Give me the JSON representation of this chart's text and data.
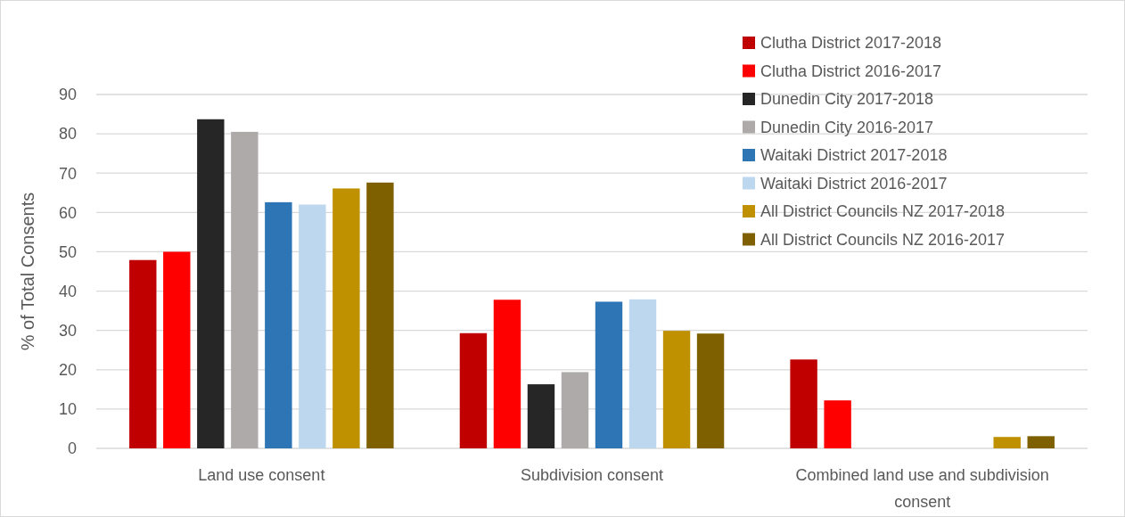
{
  "chart_data": {
    "type": "bar",
    "ylabel": "% of Total Consents",
    "categories": [
      "Land use consent",
      "Subdivision consent",
      "Combined land use and subdivision consent"
    ],
    "series": [
      {
        "name": "Clutha District 2017-2018",
        "color": "#c00000",
        "values": [
          47.9,
          29.3,
          22.6
        ]
      },
      {
        "name": "Clutha District 2016-2017",
        "color": "#ff0000",
        "values": [
          50,
          37.8,
          12.2
        ]
      },
      {
        "name": "Dunedin City 2017-2018",
        "color": "#262626",
        "values": [
          83.7,
          16.3,
          0
        ]
      },
      {
        "name": "Dunedin City 2016-2017",
        "color": "#aeaaaa",
        "values": [
          80.5,
          19.4,
          0
        ]
      },
      {
        "name": "Waitaki District 2017-2018",
        "color": "#2e75b6",
        "values": [
          62.6,
          37.3,
          0
        ]
      },
      {
        "name": "Waitaki District 2016-2017",
        "color": "#bdd7ee",
        "values": [
          62,
          37.9,
          0
        ]
      },
      {
        "name": "All District Councils NZ 2017-2018",
        "color": "#bf9000",
        "values": [
          66.1,
          29.9,
          2.9
        ]
      },
      {
        "name": "All District Councils NZ 2016-2017",
        "color": "#7f6000",
        "values": [
          67.6,
          29.2,
          3.1
        ]
      }
    ],
    "ylim": [
      0,
      90
    ],
    "yticks": [
      0,
      10,
      20,
      30,
      40,
      50,
      60,
      70,
      80,
      90
    ],
    "grid": "y",
    "legend": "top right"
  }
}
